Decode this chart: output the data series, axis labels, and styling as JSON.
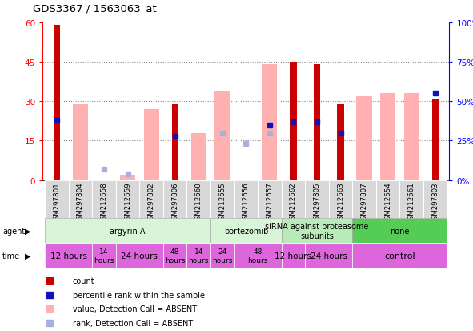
{
  "title": "GDS3367 / 1563063_at",
  "samples": [
    "GSM297801",
    "GSM297804",
    "GSM212658",
    "GSM212659",
    "GSM297802",
    "GSM297806",
    "GSM212660",
    "GSM212655",
    "GSM212656",
    "GSM212657",
    "GSM212662",
    "GSM297805",
    "GSM212663",
    "GSM297807",
    "GSM212654",
    "GSM212661",
    "GSM297803"
  ],
  "count_values": [
    59,
    0,
    0,
    0,
    0,
    29,
    0,
    0,
    0,
    0,
    45,
    44,
    29,
    0,
    0,
    0,
    31
  ],
  "pink_bar_values": [
    0,
    29,
    0,
    2,
    27,
    0,
    18,
    34,
    0,
    44,
    0,
    0,
    0,
    32,
    33,
    33,
    0
  ],
  "blue_square_values": [
    38,
    0,
    0,
    0,
    0,
    28,
    0,
    0,
    0,
    35,
    37,
    37,
    30,
    0,
    0,
    0,
    55
  ],
  "blue_square_absent": [
    false,
    false,
    false,
    false,
    false,
    false,
    false,
    false,
    false,
    false,
    false,
    false,
    false,
    false,
    false,
    false,
    false
  ],
  "light_blue_square_values": [
    0,
    0,
    7,
    4,
    0,
    0,
    0,
    30,
    23,
    30,
    0,
    0,
    0,
    0,
    0,
    0,
    0
  ],
  "ylim_left": [
    0,
    60
  ],
  "ylim_right": [
    0,
    100
  ],
  "yticks_left": [
    0,
    15,
    30,
    45,
    60
  ],
  "yticks_right": [
    0,
    25,
    50,
    75,
    100
  ],
  "ytick_labels_left": [
    "0",
    "15",
    "30",
    "45",
    "60"
  ],
  "ytick_labels_right": [
    "0%",
    "25%",
    "50%",
    "75%",
    "100%"
  ],
  "agent_groups": [
    {
      "label": "argyrin A",
      "start": 0,
      "end": 7,
      "color": "#d8f5d8"
    },
    {
      "label": "bortezomib",
      "start": 7,
      "end": 10,
      "color": "#d8f5d8"
    },
    {
      "label": "siRNA against proteasome\nsubunits",
      "start": 10,
      "end": 13,
      "color": "#b8ebb8"
    },
    {
      "label": "none",
      "start": 13,
      "end": 17,
      "color": "#55cc55"
    }
  ],
  "time_groups": [
    {
      "label": "12 hours",
      "start": 0,
      "end": 2,
      "fontsize": 7.5
    },
    {
      "label": "14\nhours",
      "start": 2,
      "end": 3,
      "fontsize": 6.5
    },
    {
      "label": "24 hours",
      "start": 3,
      "end": 5,
      "fontsize": 7.5
    },
    {
      "label": "48\nhours",
      "start": 5,
      "end": 6,
      "fontsize": 6.5
    },
    {
      "label": "14\nhours",
      "start": 6,
      "end": 7,
      "fontsize": 6.5
    },
    {
      "label": "24\nhours",
      "start": 7,
      "end": 8,
      "fontsize": 6.5
    },
    {
      "label": "48\nhours",
      "start": 8,
      "end": 10,
      "fontsize": 6.5
    },
    {
      "label": "12 hours",
      "start": 10,
      "end": 11,
      "fontsize": 7.5
    },
    {
      "label": "24 hours",
      "start": 11,
      "end": 13,
      "fontsize": 7.5
    },
    {
      "label": "control",
      "start": 13,
      "end": 17,
      "fontsize": 8
    }
  ],
  "count_color": "#cc0000",
  "pink_color": "#ffb0b0",
  "blue_color": "#1111bb",
  "light_blue_color": "#aab0dd",
  "grid_color": "#888888",
  "time_color": "#dd66dd",
  "agent_border_color": "#888888"
}
